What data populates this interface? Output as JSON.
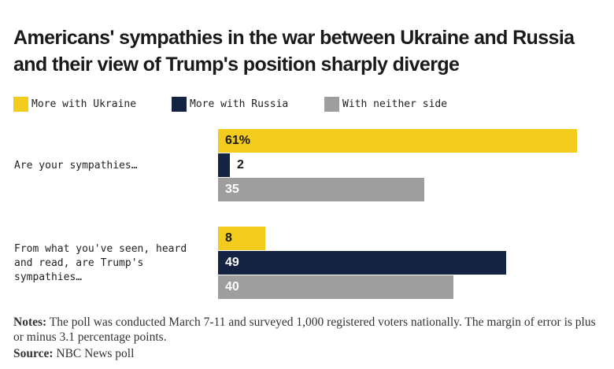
{
  "chart_data": {
    "type": "bar",
    "orientation": "horizontal",
    "title": "Americans' sympathies in the war between Ukraine and Russia and their view of Trump's position sharply diverge",
    "categories": [
      "Are your sympathies…",
      "From what you've seen, heard\nand read, are Trump's\nsympathies…"
    ],
    "series": [
      {
        "name": "More with Ukraine",
        "color": "#f2cb1d",
        "text_color": "#1a1a1a",
        "values": [
          61,
          8
        ],
        "labels": [
          "61%",
          "8"
        ]
      },
      {
        "name": "More with Russia",
        "color": "#142341",
        "text_color": "#ffffff",
        "values": [
          2,
          49
        ],
        "labels": [
          "2",
          "49"
        ]
      },
      {
        "name": "With neither side",
        "color": "#9e9e9e",
        "text_color": "#ffffff",
        "values": [
          35,
          40
        ],
        "labels": [
          "35",
          "40"
        ]
      }
    ],
    "xlim": [
      0,
      61
    ],
    "legend": "top-left"
  },
  "notes": {
    "label": "Notes:",
    "text": " The poll was conducted March 7-11 and surveyed 1,000 registered voters nationally. The margin of error is plus or minus 3.1 percentage points."
  },
  "source": {
    "label": "Source:",
    "text": " NBC News poll"
  }
}
